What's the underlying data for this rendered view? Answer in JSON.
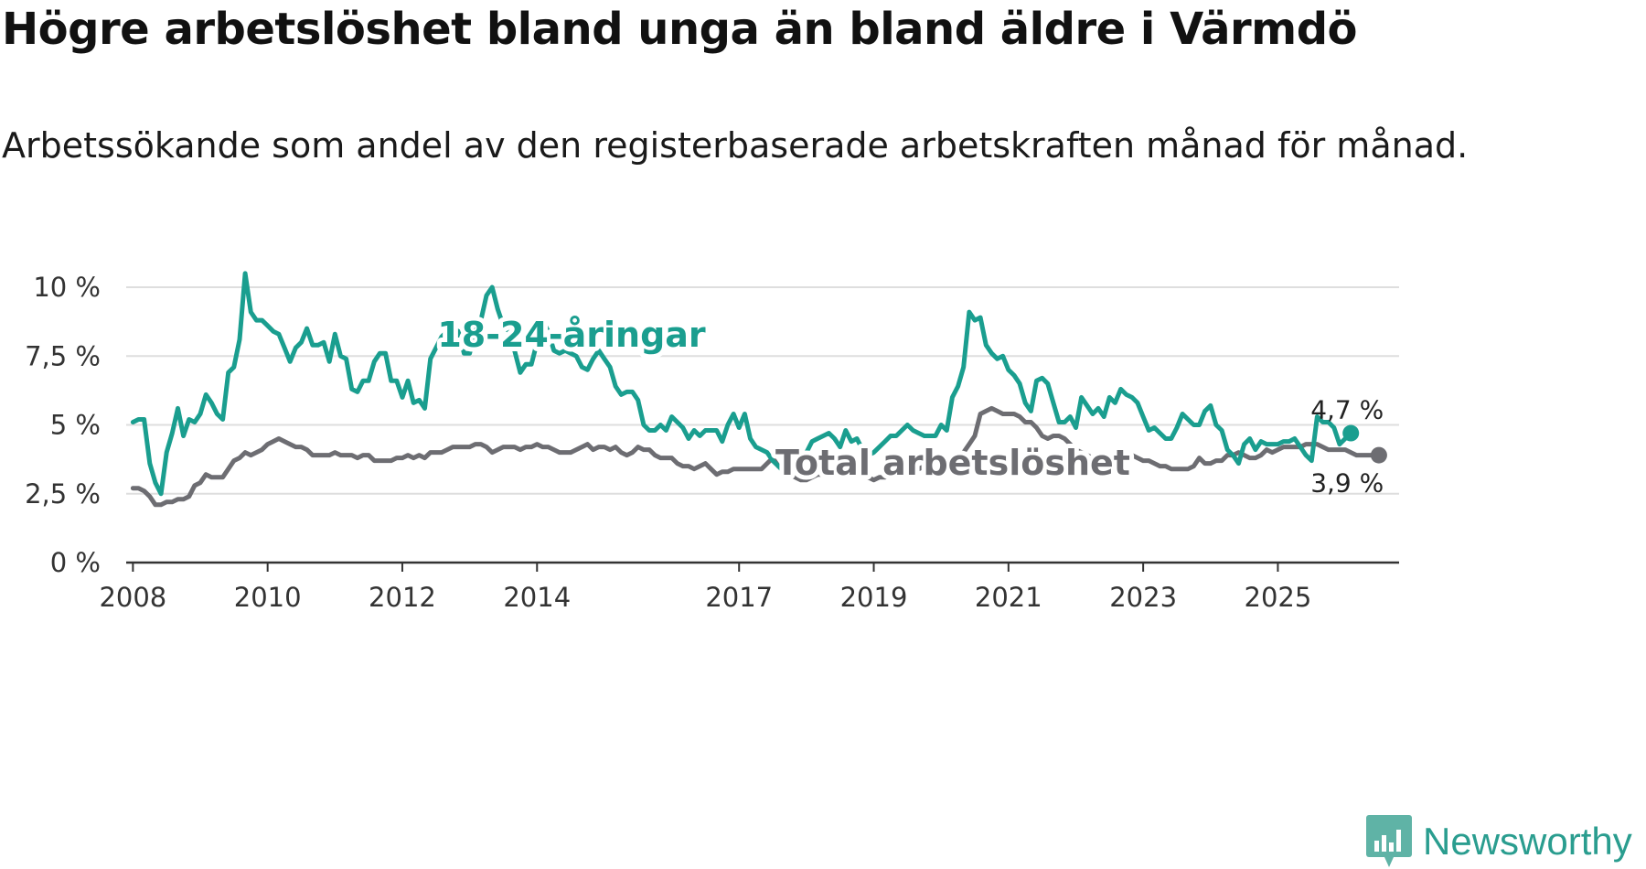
{
  "title": "Högre arbetslöshet bland unga än bland äldre i Värmdö",
  "subtitle": "Arbetssökande som andel av den registerbaserade arbetskraften månad för månad.",
  "logo_text": "Newsworthy",
  "colors": {
    "youth": "#1a9e8f",
    "total": "#6d6d72",
    "grid": "#dedede",
    "axis": "#333333"
  },
  "chart_data": {
    "type": "line",
    "title": "Högre arbetslöshet bland unga än bland äldre i Värmdö",
    "xlabel": "",
    "ylabel": "",
    "ylim": [
      0,
      10
    ],
    "yticks": [
      0,
      2.5,
      5,
      7.5,
      10
    ],
    "ytick_labels": [
      "0 %",
      "2,5 %",
      "5 %",
      "7,5 %",
      "10 %"
    ],
    "x_start": 2008.0,
    "x_step_months": 1,
    "xlim": [
      2007.9,
      2026.8
    ],
    "xticks": [
      2008,
      2010,
      2012,
      2014,
      2017,
      2019,
      2021,
      2023,
      2025
    ],
    "xtick_labels": [
      "2008",
      "2010",
      "2012",
      "2014",
      "2017",
      "2019",
      "2021",
      "2023",
      "2025"
    ],
    "series": [
      {
        "name": "18-24-åringar",
        "label": "18-24-åringar",
        "end_label": "4,7 %",
        "values": [
          5.1,
          5.2,
          5.2,
          3.6,
          2.9,
          2.5,
          4.0,
          4.7,
          5.6,
          4.6,
          5.2,
          5.1,
          5.4,
          6.1,
          5.8,
          5.4,
          5.2,
          6.9,
          7.1,
          8.1,
          10.5,
          9.1,
          8.8,
          8.8,
          8.6,
          8.4,
          8.3,
          7.8,
          7.3,
          7.8,
          8.0,
          8.5,
          7.9,
          7.9,
          8.0,
          7.3,
          8.3,
          7.5,
          7.4,
          6.3,
          6.2,
          6.6,
          6.6,
          7.3,
          7.6,
          7.6,
          6.6,
          6.6,
          6.0,
          6.6,
          5.8,
          5.9,
          5.6,
          7.4,
          7.8,
          8.2,
          8.4,
          8.5,
          8.4,
          7.6,
          7.6,
          8.4,
          8.8,
          9.7,
          10.0,
          9.2,
          8.6,
          8.4,
          7.7,
          6.9,
          7.2,
          7.2,
          8.0,
          8.8,
          8.4,
          7.7,
          7.6,
          7.7,
          7.6,
          7.5,
          7.1,
          7.0,
          7.4,
          7.7,
          7.4,
          7.1,
          6.4,
          6.1,
          6.2,
          6.2,
          5.9,
          5.0,
          4.8,
          4.8,
          5.0,
          4.8,
          5.3,
          5.1,
          4.9,
          4.5,
          4.8,
          4.6,
          4.8,
          4.8,
          4.8,
          4.4,
          5.0,
          5.4,
          4.9,
          5.4,
          4.5,
          4.2,
          4.1,
          4.0,
          3.7,
          3.5,
          3.3,
          3.2,
          3.4,
          3.6,
          4.0,
          4.4,
          4.5,
          4.6,
          4.7,
          4.5,
          4.2,
          4.8,
          4.4,
          4.5,
          4.1,
          3.9,
          4.0,
          4.2,
          4.4,
          4.6,
          4.6,
          4.8,
          5.0,
          4.8,
          4.7,
          4.6,
          4.6,
          4.6,
          5.0,
          4.8,
          6.0,
          6.4,
          7.1,
          9.1,
          8.8,
          8.9,
          7.9,
          7.6,
          7.4,
          7.5,
          7.0,
          6.8,
          6.5,
          5.8,
          5.5,
          6.6,
          6.7,
          6.5,
          5.8,
          5.1,
          5.1,
          5.3,
          4.9,
          6.0,
          5.7,
          5.4,
          5.6,
          5.3,
          6.0,
          5.8,
          6.3,
          6.1,
          6.0,
          5.8,
          5.3,
          4.8,
          4.9,
          4.7,
          4.5,
          4.5,
          4.9,
          5.4,
          5.2,
          5.0,
          5.0,
          5.5,
          5.7,
          5.0,
          4.8,
          4.1,
          3.9,
          3.6,
          4.3,
          4.5,
          4.1,
          4.4,
          4.3,
          4.3,
          4.3,
          4.4,
          4.4,
          4.5,
          4.2,
          3.9,
          3.7,
          5.3,
          5.1,
          5.1,
          4.9,
          4.3,
          4.5,
          4.7
        ]
      },
      {
        "name": "Total arbetslöshet",
        "label": "Total arbetslöshet",
        "end_label": "3,9 %",
        "values": [
          2.7,
          2.7,
          2.6,
          2.4,
          2.1,
          2.1,
          2.2,
          2.2,
          2.3,
          2.3,
          2.4,
          2.8,
          2.9,
          3.2,
          3.1,
          3.1,
          3.1,
          3.4,
          3.7,
          3.8,
          4.0,
          3.9,
          4.0,
          4.1,
          4.3,
          4.4,
          4.5,
          4.4,
          4.3,
          4.2,
          4.2,
          4.1,
          3.9,
          3.9,
          3.9,
          3.9,
          4.0,
          3.9,
          3.9,
          3.9,
          3.8,
          3.9,
          3.9,
          3.7,
          3.7,
          3.7,
          3.7,
          3.8,
          3.8,
          3.9,
          3.8,
          3.9,
          3.8,
          4.0,
          4.0,
          4.0,
          4.1,
          4.2,
          4.2,
          4.2,
          4.2,
          4.3,
          4.3,
          4.2,
          4.0,
          4.1,
          4.2,
          4.2,
          4.2,
          4.1,
          4.2,
          4.2,
          4.3,
          4.2,
          4.2,
          4.1,
          4.0,
          4.0,
          4.0,
          4.1,
          4.2,
          4.3,
          4.1,
          4.2,
          4.2,
          4.1,
          4.2,
          4.0,
          3.9,
          4.0,
          4.2,
          4.1,
          4.1,
          3.9,
          3.8,
          3.8,
          3.8,
          3.6,
          3.5,
          3.5,
          3.4,
          3.5,
          3.6,
          3.4,
          3.2,
          3.3,
          3.3,
          3.4,
          3.4,
          3.4,
          3.4,
          3.4,
          3.4,
          3.6,
          3.8,
          3.5,
          3.4,
          3.2,
          3.1,
          3.0,
          3.0,
          3.1,
          3.2,
          3.2,
          3.3,
          3.3,
          3.4,
          3.3,
          3.2,
          3.2,
          3.2,
          3.1,
          3.0,
          3.1,
          3.1,
          3.2,
          3.2,
          3.3,
          3.3,
          3.3,
          3.4,
          3.5,
          3.5,
          3.5,
          3.6,
          3.7,
          3.7,
          3.9,
          4.0,
          4.3,
          4.6,
          5.4,
          5.5,
          5.6,
          5.5,
          5.4,
          5.4,
          5.4,
          5.3,
          5.1,
          5.1,
          4.9,
          4.6,
          4.5,
          4.6,
          4.6,
          4.5,
          4.3,
          4.1,
          4.0,
          3.9,
          3.8,
          3.7,
          3.6,
          3.5,
          3.5,
          3.6,
          3.7,
          3.9,
          3.8,
          3.7,
          3.7,
          3.6,
          3.5,
          3.5,
          3.4,
          3.4,
          3.4,
          3.4,
          3.5,
          3.8,
          3.6,
          3.6,
          3.7,
          3.7,
          3.9,
          3.9,
          4.0,
          3.9,
          3.8,
          3.8,
          3.9,
          4.1,
          4.0,
          4.1,
          4.2,
          4.2,
          4.2,
          4.2,
          4.3,
          4.3,
          4.3,
          4.2,
          4.1,
          4.1,
          4.1,
          4.1,
          4.0,
          3.9,
          3.9,
          3.9,
          3.9,
          3.9
        ]
      }
    ]
  }
}
